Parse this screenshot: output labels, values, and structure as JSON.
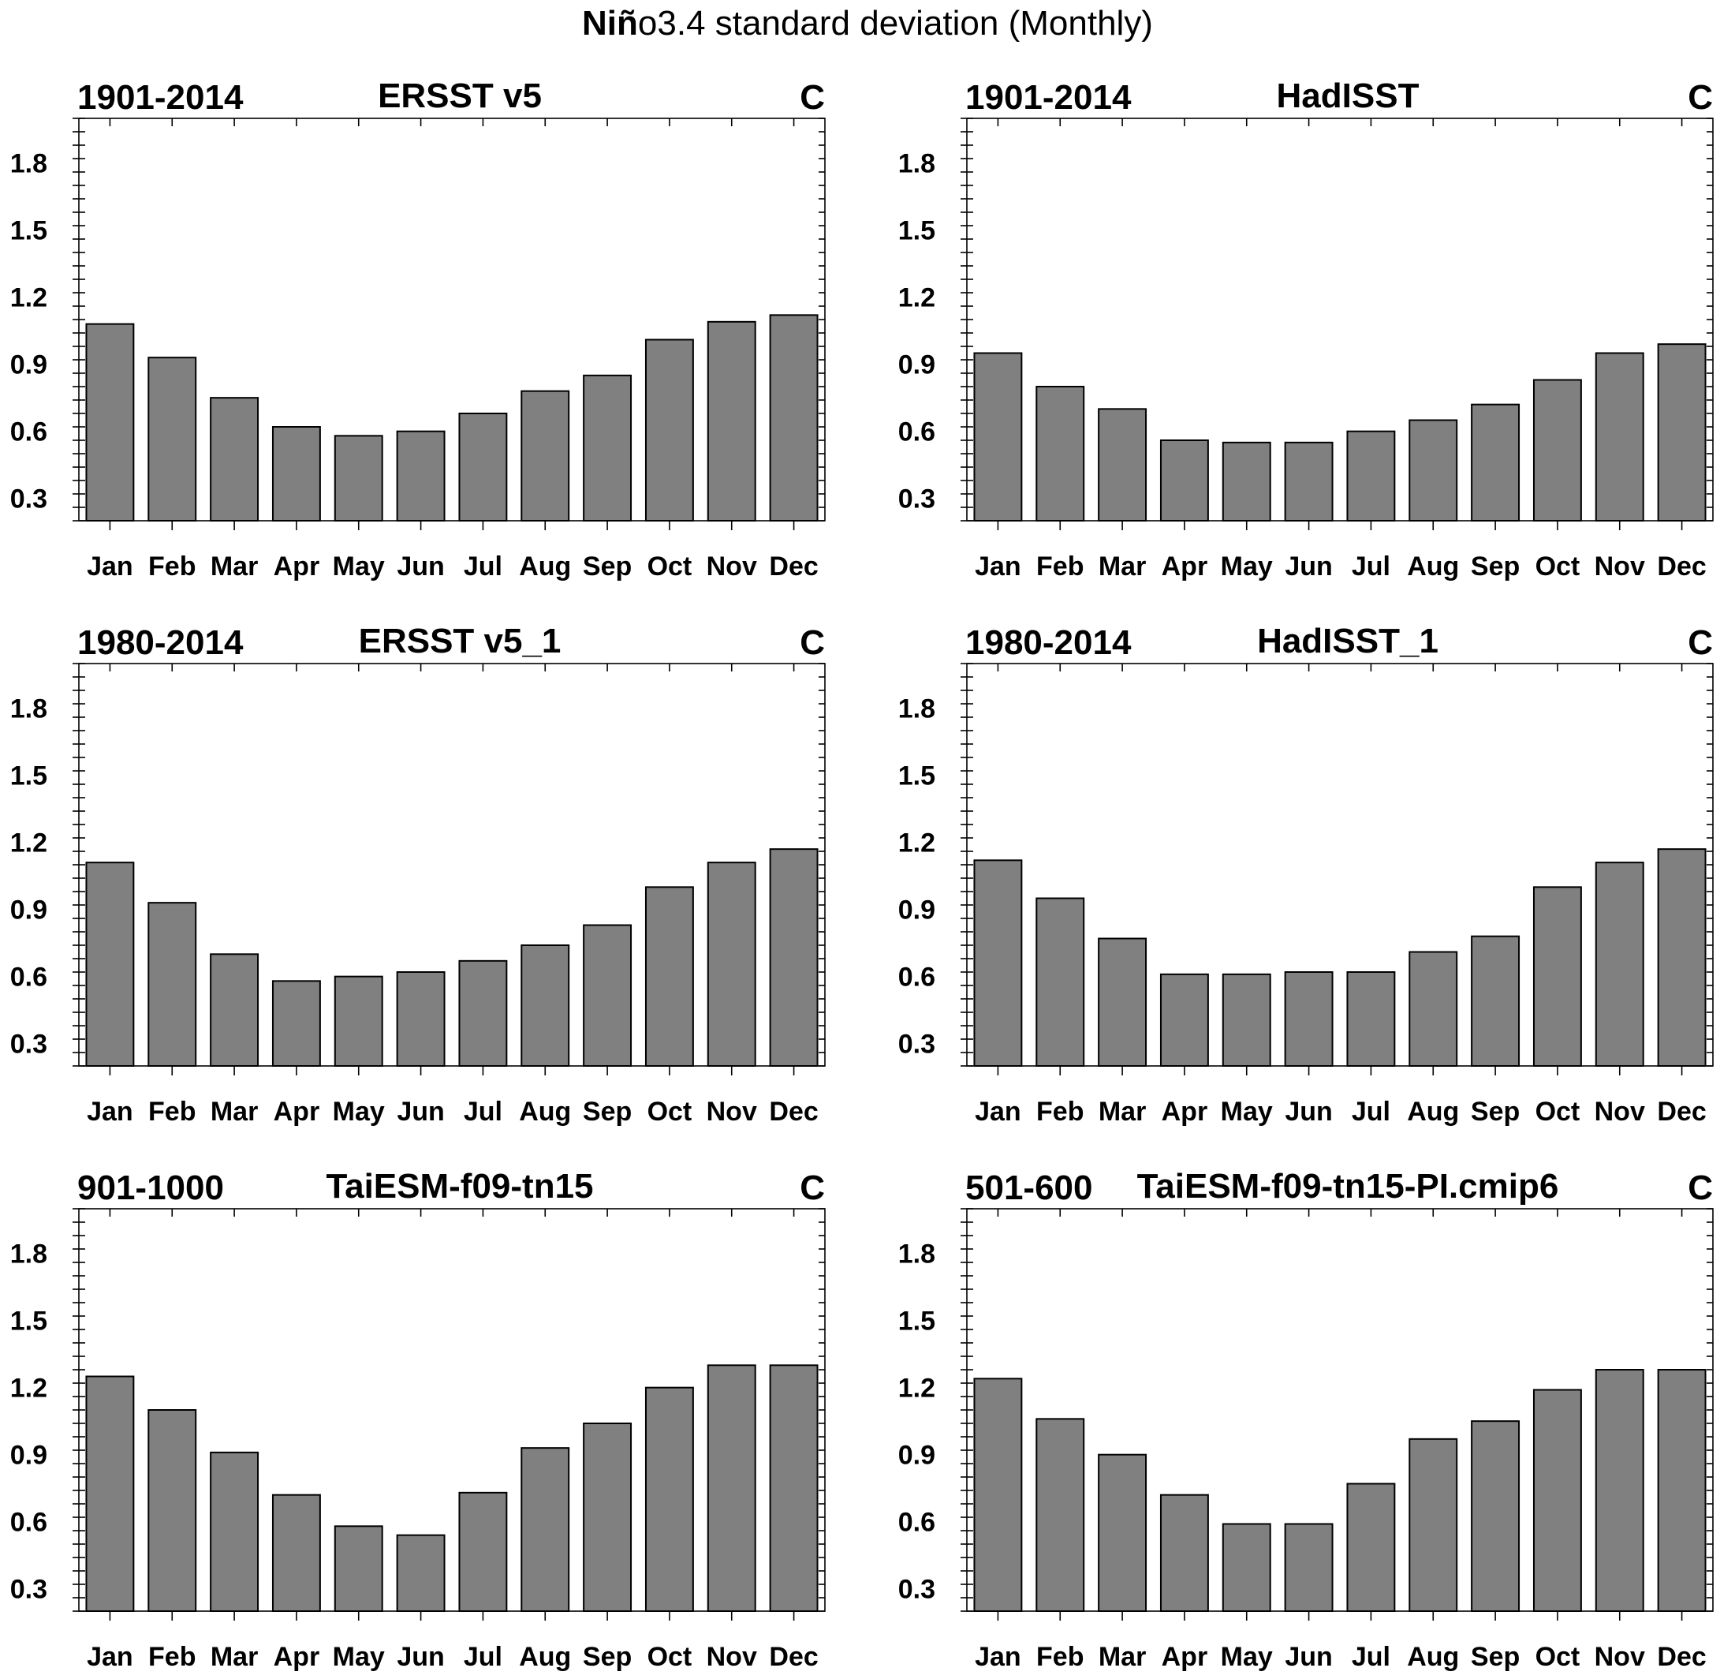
{
  "title_bold": "Niñ",
  "title_rest": "o3.4 standard deviation (Monthly)",
  "colors": {
    "bar": "#808080",
    "outline": "#000000",
    "background": "#ffffff"
  },
  "chart_data": [
    {
      "type": "bar",
      "period": "1901-2014",
      "title": "ERSST v5",
      "units": "C",
      "categories": [
        "Jan",
        "Feb",
        "Mar",
        "Apr",
        "May",
        "Jun",
        "Jul",
        "Aug",
        "Sep",
        "Oct",
        "Nov",
        "Dec"
      ],
      "values": [
        1.08,
        0.93,
        0.75,
        0.62,
        0.58,
        0.6,
        0.68,
        0.78,
        0.85,
        1.01,
        1.09,
        1.12
      ],
      "ylim": [
        0.2,
        2.0
      ],
      "yticks": [
        "0.3",
        "0.6",
        "0.9",
        "1.2",
        "1.5",
        "1.8"
      ]
    },
    {
      "type": "bar",
      "period": "1901-2014",
      "title": "HadISST",
      "units": "C",
      "categories": [
        "Jan",
        "Feb",
        "Mar",
        "Apr",
        "May",
        "Jun",
        "Jul",
        "Aug",
        "Sep",
        "Oct",
        "Nov",
        "Dec"
      ],
      "values": [
        0.95,
        0.8,
        0.7,
        0.56,
        0.55,
        0.55,
        0.6,
        0.65,
        0.72,
        0.83,
        0.95,
        0.99
      ],
      "ylim": [
        0.2,
        2.0
      ],
      "yticks": [
        "0.3",
        "0.6",
        "0.9",
        "1.2",
        "1.5",
        "1.8"
      ]
    },
    {
      "type": "bar",
      "period": "1980-2014",
      "title": "ERSST v5_1",
      "units": "C",
      "categories": [
        "Jan",
        "Feb",
        "Mar",
        "Apr",
        "May",
        "Jun",
        "Jul",
        "Aug",
        "Sep",
        "Oct",
        "Nov",
        "Dec"
      ],
      "values": [
        1.11,
        0.93,
        0.7,
        0.58,
        0.6,
        0.62,
        0.67,
        0.74,
        0.83,
        1.0,
        1.11,
        1.17
      ],
      "ylim": [
        0.2,
        2.0
      ],
      "yticks": [
        "0.3",
        "0.6",
        "0.9",
        "1.2",
        "1.5",
        "1.8"
      ]
    },
    {
      "type": "bar",
      "period": "1980-2014",
      "title": "HadISST_1",
      "units": "C",
      "categories": [
        "Jan",
        "Feb",
        "Mar",
        "Apr",
        "May",
        "Jun",
        "Jul",
        "Aug",
        "Sep",
        "Oct",
        "Nov",
        "Dec"
      ],
      "values": [
        1.12,
        0.95,
        0.77,
        0.61,
        0.61,
        0.62,
        0.62,
        0.71,
        0.78,
        1.0,
        1.11,
        1.17
      ],
      "ylim": [
        0.2,
        2.0
      ],
      "yticks": [
        "0.3",
        "0.6",
        "0.9",
        "1.2",
        "1.5",
        "1.8"
      ]
    },
    {
      "type": "bar",
      "period": "901-1000",
      "title": "TaiESM-f09-tn15",
      "units": "C",
      "categories": [
        "Jan",
        "Feb",
        "Mar",
        "Apr",
        "May",
        "Jun",
        "Jul",
        "Aug",
        "Sep",
        "Oct",
        "Nov",
        "Dec"
      ],
      "values": [
        1.25,
        1.1,
        0.91,
        0.72,
        0.58,
        0.54,
        0.73,
        0.93,
        1.04,
        1.2,
        1.3,
        1.3
      ],
      "ylim": [
        0.2,
        2.0
      ],
      "yticks": [
        "0.3",
        "0.6",
        "0.9",
        "1.2",
        "1.5",
        "1.8"
      ]
    },
    {
      "type": "bar",
      "period": "501-600",
      "title": "TaiESM-f09-tn15-PI.cmip6",
      "units": "C",
      "categories": [
        "Jan",
        "Feb",
        "Mar",
        "Apr",
        "May",
        "Jun",
        "Jul",
        "Aug",
        "Sep",
        "Oct",
        "Nov",
        "Dec"
      ],
      "values": [
        1.24,
        1.06,
        0.9,
        0.72,
        0.59,
        0.59,
        0.77,
        0.97,
        1.05,
        1.19,
        1.28,
        1.28
      ],
      "ylim": [
        0.2,
        2.0
      ],
      "yticks": [
        "0.3",
        "0.6",
        "0.9",
        "1.2",
        "1.5",
        "1.8"
      ]
    }
  ]
}
